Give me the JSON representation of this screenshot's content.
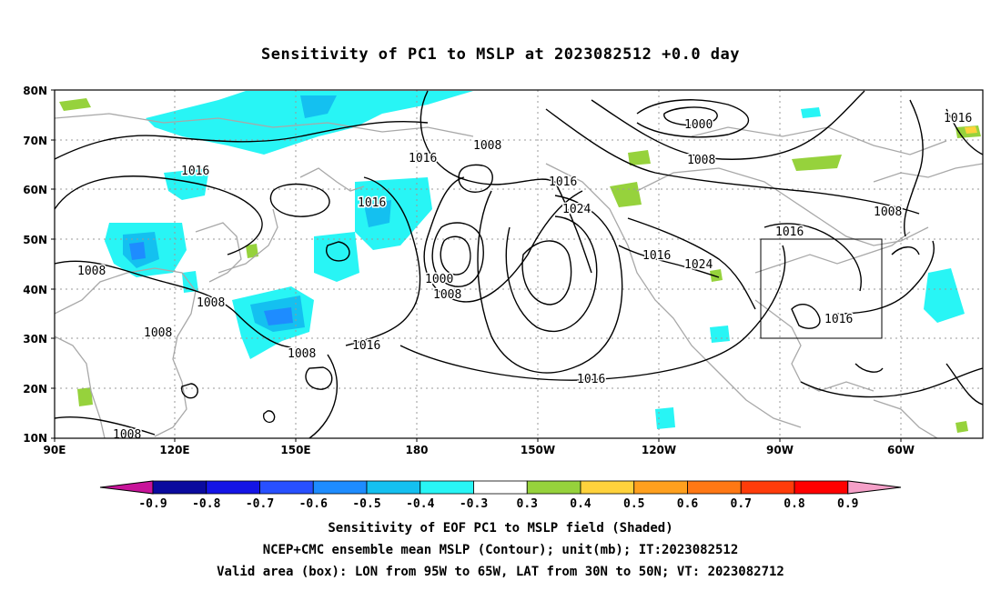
{
  "title": "Sensitivity of PC1 to MSLP at 2023082512 +0.0 day",
  "lat_labels": [
    "80N",
    "70N",
    "60N",
    "50N",
    "40N",
    "30N",
    "20N",
    "10N"
  ],
  "lon_labels": [
    "90E",
    "120E",
    "150E",
    "180",
    "150W",
    "120W",
    "90W",
    "60W"
  ],
  "contour_labels": [
    {
      "text": "1016"
    },
    {
      "text": "1016"
    },
    {
      "text": "1016"
    },
    {
      "text": "1016"
    },
    {
      "text": "1008"
    },
    {
      "text": "1000"
    },
    {
      "text": "1008"
    },
    {
      "text": "1008"
    },
    {
      "text": "1016"
    },
    {
      "text": "1024"
    },
    {
      "text": "1016"
    },
    {
      "text": "1024"
    },
    {
      "text": "1016"
    },
    {
      "text": "1008"
    },
    {
      "text": "1008"
    },
    {
      "text": "1008"
    },
    {
      "text": "1008"
    },
    {
      "text": "1008"
    },
    {
      "text": "1000"
    },
    {
      "text": "1008"
    },
    {
      "text": "1016"
    },
    {
      "text": "1016"
    },
    {
      "text": "1016"
    },
    {
      "text": "1008"
    }
  ],
  "colorbar": {
    "labels": [
      "-0.9",
      "-0.8",
      "-0.7",
      "-0.6",
      "-0.5",
      "-0.4",
      "-0.3",
      "0.3",
      "0.4",
      "0.5",
      "0.6",
      "0.7",
      "0.8",
      "0.9"
    ],
    "colors": [
      "#0a0a9e",
      "#1414e6",
      "#2850ff",
      "#1e8cff",
      "#14c0f0",
      "#28f5f5",
      "#ffffff",
      "#96d23c",
      "#ffd23c",
      "#ffa01e",
      "#ff7814",
      "#ff3c0a",
      "#ff0000"
    ],
    "left_arrow": "#c8149a",
    "right_arrow": "#f5a0c8"
  },
  "footer": {
    "line1": "Sensitivity of EOF PC1 to MSLP field (Shaded)",
    "line2": "NCEP+CMC ensemble mean MSLP (Contour); unit(mb); IT:2023082512",
    "line3": "Valid area (box): LON from 95W to 65W, LAT from 30N to 50N; VT: 2023082712"
  }
}
